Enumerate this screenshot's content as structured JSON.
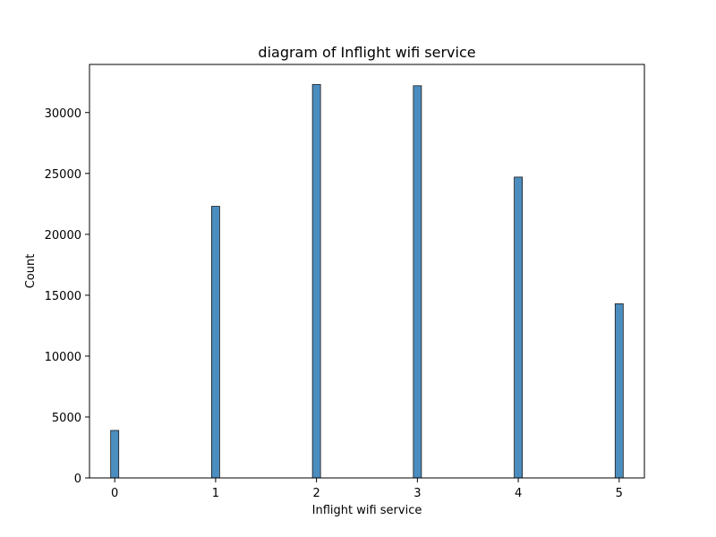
{
  "chart_data": {
    "type": "bar",
    "title": "diagram of Inflight wifi service",
    "xlabel": "Inflight wifi service",
    "ylabel": "Count",
    "categories": [
      "0",
      "1",
      "2",
      "3",
      "4",
      "5"
    ],
    "x": [
      0,
      1,
      2,
      3,
      4,
      5
    ],
    "values": [
      3900,
      22300,
      32300,
      32200,
      24700,
      14300
    ],
    "xlim": [
      -0.25,
      5.25
    ],
    "ylim": [
      0,
      33950
    ],
    "x_ticks": [
      0,
      1,
      2,
      3,
      4,
      5
    ],
    "x_tick_labels": [
      "0",
      "1",
      "2",
      "3",
      "4",
      "5"
    ],
    "y_ticks": [
      0,
      5000,
      10000,
      15000,
      20000,
      25000,
      30000
    ],
    "y_tick_labels": [
      "0",
      "5000",
      "10000",
      "15000",
      "20000",
      "25000",
      "30000"
    ],
    "bar_width": 0.08,
    "grid": false,
    "legend": "none",
    "colors": {
      "bar_fill": "#4c8dbf",
      "bar_edge": "#1a1a1a",
      "axes": "#000000",
      "background": "#ffffff"
    }
  }
}
